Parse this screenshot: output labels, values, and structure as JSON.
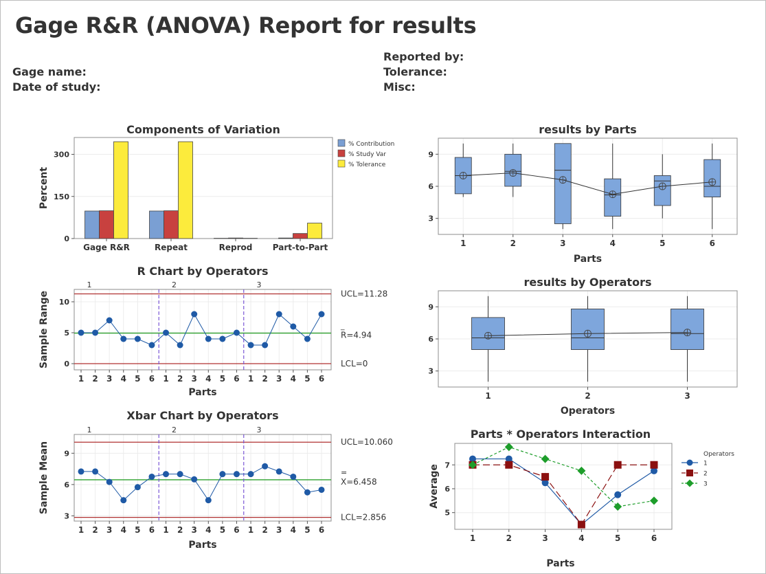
{
  "report": {
    "title": "Gage R&R (ANOVA) Report for results",
    "gage_name": "Gage name:",
    "date_of_study": "Date of study:",
    "reported_by": "Reported by:",
    "tolerance": "Tolerance:",
    "misc": "Misc:"
  },
  "colors": {
    "contribution": "#7a9fd3",
    "study_var": "#c8413f",
    "tolerance": "#fceb3c",
    "point": "#1f5aa6",
    "center": "#2ca02c",
    "limit": "#b03030",
    "divider": "#7a56d6",
    "box": "#7ea6dc",
    "op2": "#8b1010",
    "op3": "#1d9d2a"
  },
  "chart_data": [
    {
      "id": "components",
      "type": "bar",
      "title": "Components of Variation",
      "ylabel": "Percent",
      "ylim": [
        0,
        360
      ],
      "yticks": [
        "0",
        "150",
        "300"
      ],
      "categories": [
        "Gage R&R",
        "Repeat",
        "Reprod",
        "Part-to-Part"
      ],
      "series": [
        {
          "name": "% Contribution",
          "values": [
            98,
            98,
            1,
            2
          ]
        },
        {
          "name": "% Study Var",
          "values": [
            99,
            99,
            2,
            18
          ]
        },
        {
          "name": "% Tolerance",
          "values": [
            345,
            345,
            1,
            55
          ]
        }
      ],
      "legend": [
        "% Contribution",
        "% Study Var",
        "% Tolerance"
      ]
    },
    {
      "id": "rchart",
      "type": "line",
      "title": "R Chart by Operators",
      "xlabel": "Parts",
      "ylabel": "Sample Range",
      "ylim": [
        -1,
        12
      ],
      "yticks": [
        "0",
        "5",
        "10"
      ],
      "operators": [
        "1",
        "2",
        "3"
      ],
      "x": [
        "1",
        "2",
        "3",
        "4",
        "5",
        "6",
        "1",
        "2",
        "3",
        "4",
        "5",
        "6",
        "1",
        "2",
        "3",
        "4",
        "5",
        "6"
      ],
      "values": [
        5,
        5,
        7,
        4,
        4,
        3,
        5,
        3,
        8,
        4,
        4,
        5,
        3,
        3,
        8,
        6,
        4,
        8
      ],
      "ucl": 11.28,
      "center": 4.94,
      "lcl": 0,
      "ucl_label": "UCL=11.28",
      "center_label": "R=4.94",
      "bar_mark": "_",
      "lcl_label": "LCL=0"
    },
    {
      "id": "xbar",
      "type": "line",
      "title": "Xbar Chart by Operators",
      "xlabel": "Parts",
      "ylabel": "Sample Mean",
      "ylim": [
        2.5,
        10.8
      ],
      "yticks": [
        "3",
        "6",
        "9"
      ],
      "operators": [
        "1",
        "2",
        "3"
      ],
      "x": [
        "1",
        "2",
        "3",
        "4",
        "5",
        "6",
        "1",
        "2",
        "3",
        "4",
        "5",
        "6",
        "1",
        "2",
        "3",
        "4",
        "5",
        "6"
      ],
      "values": [
        7.25,
        7.25,
        6.25,
        4.5,
        5.75,
        6.75,
        7.0,
        7.0,
        6.5,
        4.5,
        7.0,
        7.0,
        7.0,
        7.75,
        7.25,
        6.75,
        5.25,
        5.5
      ],
      "ucl": 10.06,
      "center": 6.458,
      "lcl": 2.856,
      "ucl_label": "UCL=10.060",
      "center_label": "X=6.458",
      "bar_mark": "=",
      "lcl_label": "LCL=2.856"
    },
    {
      "id": "byparts",
      "type": "box",
      "title": "results by Parts",
      "xlabel": "Parts",
      "ylim": [
        1.5,
        10.5
      ],
      "yticks": [
        "3",
        "6",
        "9"
      ],
      "categories": [
        "1",
        "2",
        "3",
        "4",
        "5",
        "6"
      ],
      "boxes": [
        {
          "min": 5,
          "q1": 5.3,
          "median": 7,
          "q3": 8.7,
          "max": 10,
          "mean": 7.0
        },
        {
          "min": 5,
          "q1": 6,
          "median": 7.4,
          "q3": 9,
          "max": 10,
          "mean": 7.25
        },
        {
          "min": 2,
          "q1": 2.5,
          "median": 7.5,
          "q3": 10,
          "max": 10,
          "mean": 6.6
        },
        {
          "min": 2,
          "q1": 3.2,
          "median": 5.2,
          "q3": 6.7,
          "max": 10,
          "mean": 5.25
        },
        {
          "min": 3,
          "q1": 4.2,
          "median": 6.5,
          "q3": 7,
          "max": 9,
          "mean": 6.0
        },
        {
          "min": 2,
          "q1": 5,
          "median": 6,
          "q3": 8.5,
          "max": 10,
          "mean": 6.4
        }
      ]
    },
    {
      "id": "byops",
      "type": "box",
      "title": "results by Operators",
      "xlabel": "Operators",
      "ylim": [
        1.5,
        10.5
      ],
      "yticks": [
        "3",
        "6",
        "9"
      ],
      "categories": [
        "1",
        "2",
        "3"
      ],
      "boxes": [
        {
          "min": 2,
          "q1": 5,
          "median": 6.1,
          "q3": 8,
          "max": 10,
          "mean": 6.3
        },
        {
          "min": 2,
          "q1": 5,
          "median": 6.1,
          "q3": 8.8,
          "max": 10,
          "mean": 6.5
        },
        {
          "min": 2,
          "q1": 5,
          "median": 6.5,
          "q3": 8.8,
          "max": 10,
          "mean": 6.6
        }
      ]
    },
    {
      "id": "interaction",
      "type": "line",
      "title": "Parts * Operators Interaction",
      "xlabel": "Parts",
      "ylabel": "Average",
      "ylim": [
        4.3,
        7.9
      ],
      "yticks": [
        "5",
        "6",
        "7"
      ],
      "categories": [
        "1",
        "2",
        "3",
        "4",
        "5",
        "6"
      ],
      "legend_title": "Operators",
      "series": [
        {
          "name": "1",
          "values": [
            7.25,
            7.25,
            6.25,
            4.5,
            5.75,
            6.75
          ]
        },
        {
          "name": "2",
          "values": [
            7.0,
            7.0,
            6.5,
            4.5,
            7.0,
            7.0
          ]
        },
        {
          "name": "3",
          "values": [
            7.0,
            7.75,
            7.25,
            6.75,
            5.25,
            5.5
          ]
        }
      ]
    }
  ]
}
